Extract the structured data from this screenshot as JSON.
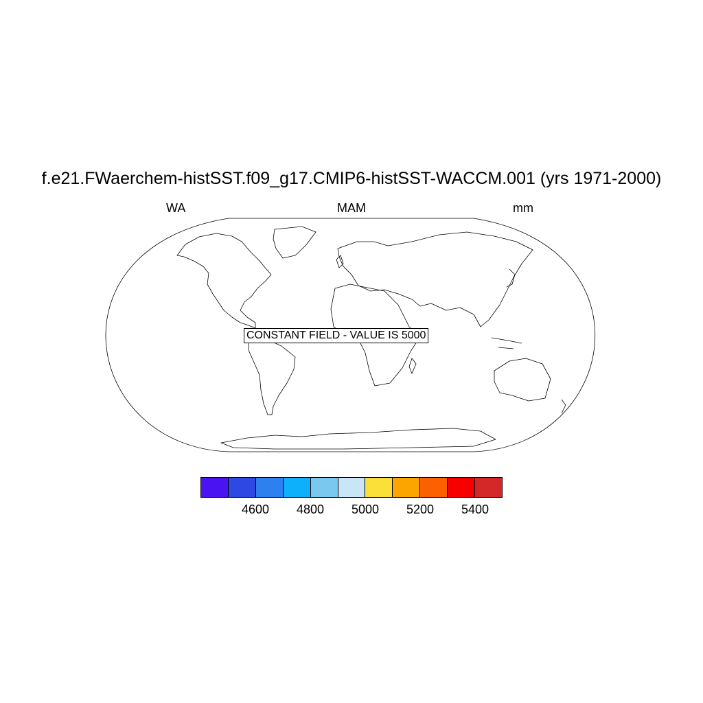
{
  "title": "f.e21.FWaerchem-histSST.f09_g17.CMIP6-histSST-WACCM.001 (yrs 1971-2000)",
  "left_label": "WA",
  "center_label": "MAM",
  "right_label": "mm",
  "map": {
    "projection": "robinson",
    "annotation": "CONSTANT FIELD - VALUE IS 5000"
  },
  "colorbar": {
    "colors": [
      "#4a14f2",
      "#2e48e4",
      "#2d80ee",
      "#0db0fb",
      "#7ac8ef",
      "#c8e6f6",
      "#fbe03a",
      "#fca500",
      "#fd6000",
      "#f70000",
      "#d42828"
    ],
    "tick_labels": [
      "4600",
      "4800",
      "5000",
      "5200",
      "5400"
    ]
  }
}
